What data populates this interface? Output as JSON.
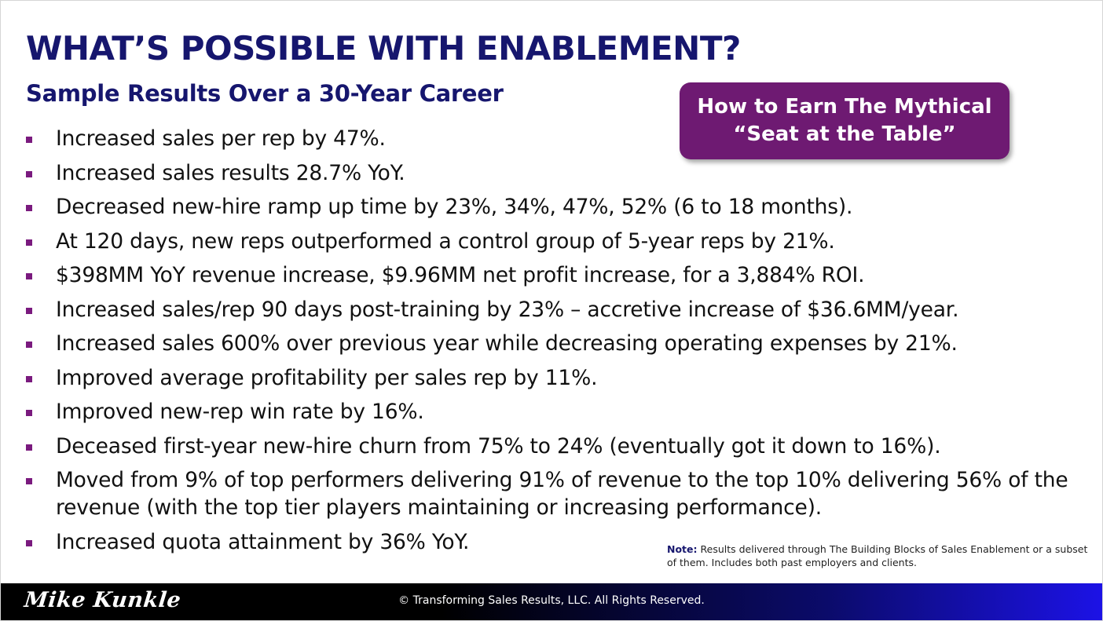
{
  "slide": {
    "title": "WHAT’S POSSIBLE WITH ENABLEMENT?",
    "subtitle": "Sample Results Over a 30-Year Career",
    "callout": "How to Earn The Mythical “Seat at the Table”",
    "bullets": [
      "Increased sales per rep by 47%.",
      "Increased sales results 28.7% YoY.",
      "Decreased new-hire ramp up time by 23%, 34%, 47%, 52% (6 to 18 months).",
      "At 120 days, new reps outperformed a control group of 5-year reps by 21%.",
      "$398MM YoY revenue increase, $9.96MM net profit increase, for a 3,884% ROI.",
      "Increased sales/rep 90 days post-training by 23% – accretive increase of $36.6MM/year.",
      "Increased sales 600% over previous year while decreasing operating expenses by 21%.",
      "Improved average profitability per sales rep by 11%.",
      "Improved new-rep win rate by 16%.",
      "Deceased first-year new-hire churn from 75% to 24% (eventually got it down to 16%).",
      "Moved from 9% of top performers delivering 91% of revenue to the top 10% delivering 56% of the revenue (with the top tier players maintaining or increasing performance).",
      "Increased quota attainment by 36% YoY."
    ],
    "note_label": "Note:",
    "note_text": "Results delivered through The Building Blocks of Sales Enablement or a subset of them. Includes both past employers and clients."
  },
  "footer": {
    "signature": "Mike Kunkle",
    "copyright": "© Transforming Sales Results, LLC. All Rights Reserved."
  },
  "colors": {
    "title": "#16166e",
    "callout_bg": "#6e1a72",
    "bullet_marker": "#7a1a7e",
    "footer_gradient_end": "#1c12e6"
  }
}
